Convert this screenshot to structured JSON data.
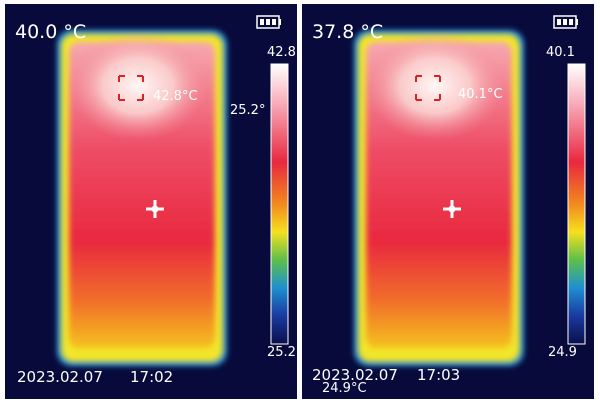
{
  "panels": [
    {
      "center_temp": "40.0 °C",
      "scale_max": "42.8",
      "hotspot_label": "42.8°C",
      "overlay_label": "25.2°",
      "scale_min": "25.2",
      "date": "2023.02.07",
      "time": "17:02"
    },
    {
      "center_temp": "37.8 °C",
      "scale_max": "40.1",
      "hotspot_label": "40.1°C",
      "overlay_label": "24.9°C",
      "scale_min": "24.9",
      "date": "2023.02.07",
      "time": "17:03"
    }
  ]
}
